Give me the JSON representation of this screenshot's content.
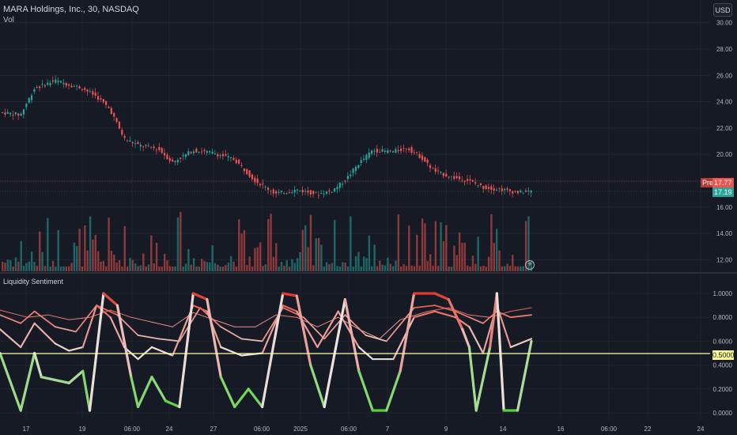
{
  "header": {
    "symbol_line": "MARA Holdings, Inc., 30, NASDAQ",
    "volume_label": "Vol",
    "currency": "USD"
  },
  "price_axis": {
    "ticks": [
      "30.00",
      "28.00",
      "26.00",
      "24.00",
      "22.00",
      "20.00",
      "18.00",
      "16.00",
      "14.00",
      "12.00"
    ]
  },
  "badges": {
    "pre_label": "Pre",
    "pre_price": "17.77",
    "last_price": "17.19"
  },
  "indicator": {
    "title": "Liquidity Sentiment",
    "ticks": [
      "1.0000",
      "0.8000",
      "0.6000",
      "0.4000",
      "0.2000",
      "0.0000"
    ],
    "level_value": "0.5000",
    "level_color": "#ffff99"
  },
  "time_axis": {
    "labels": [
      "17",
      "19",
      "06:00",
      "24",
      "27",
      "06:00",
      "2025",
      "06:00",
      "7",
      "9",
      "14",
      "16",
      "06:00",
      "22",
      "24"
    ]
  },
  "colors": {
    "background": "#161a25",
    "up": "#26a69a",
    "down": "#ef5350",
    "sentiment_high": "#e03a2a",
    "sentiment_low": "#4bd130"
  },
  "chart_data": {
    "type": "candlestick",
    "symbol": "MARA Holdings, Inc., 30, NASDAQ",
    "ylim": [
      11,
      31
    ],
    "price_path": [
      [
        0,
        23.2
      ],
      [
        0.03,
        23.0
      ],
      [
        0.05,
        25.0
      ],
      [
        0.08,
        25.6
      ],
      [
        0.1,
        25.3
      ],
      [
        0.12,
        25.0
      ],
      [
        0.14,
        24.4
      ],
      [
        0.16,
        23.4
      ],
      [
        0.18,
        21.2
      ],
      [
        0.2,
        20.7
      ],
      [
        0.23,
        20.4
      ],
      [
        0.25,
        19.4
      ],
      [
        0.28,
        20.3
      ],
      [
        0.31,
        20.1
      ],
      [
        0.34,
        19.6
      ],
      [
        0.37,
        18.0
      ],
      [
        0.4,
        17.0
      ],
      [
        0.43,
        17.3
      ],
      [
        0.46,
        17.0
      ],
      [
        0.48,
        17.2
      ],
      [
        0.5,
        18.0
      ],
      [
        0.52,
        19.3
      ],
      [
        0.54,
        20.3
      ],
      [
        0.57,
        20.2
      ],
      [
        0.59,
        20.5
      ],
      [
        0.61,
        19.8
      ],
      [
        0.63,
        18.7
      ],
      [
        0.66,
        18.2
      ],
      [
        0.68,
        18.0
      ],
      [
        0.7,
        17.5
      ],
      [
        0.73,
        17.3
      ],
      [
        0.75,
        17.1
      ],
      [
        0.77,
        17.19
      ]
    ],
    "sentiment_ylim": [
      0,
      1
    ],
    "sentiment_lines": [
      {
        "path": [
          [
            0,
            0.5
          ],
          [
            0.03,
            0.02
          ],
          [
            0.05,
            0.5
          ],
          [
            0.06,
            0.3
          ],
          [
            0.1,
            0.25
          ],
          [
            0.12,
            0.35
          ],
          [
            0.13,
            0.02
          ],
          [
            0.15,
            1.0
          ],
          [
            0.17,
            0.9
          ],
          [
            0.19,
            0.3
          ],
          [
            0.2,
            0.05
          ],
          [
            0.22,
            0.3
          ],
          [
            0.24,
            0.1
          ],
          [
            0.26,
            0.05
          ],
          [
            0.28,
            1.0
          ],
          [
            0.3,
            0.95
          ],
          [
            0.32,
            0.3
          ],
          [
            0.34,
            0.05
          ],
          [
            0.36,
            0.2
          ],
          [
            0.38,
            0.05
          ],
          [
            0.41,
            1.0
          ],
          [
            0.43,
            0.98
          ],
          [
            0.45,
            0.4
          ],
          [
            0.47,
            0.05
          ],
          [
            0.5,
            0.95
          ],
          [
            0.52,
            0.35
          ],
          [
            0.54,
            0.02
          ],
          [
            0.56,
            0.02
          ],
          [
            0.58,
            0.35
          ],
          [
            0.6,
            1.0
          ],
          [
            0.63,
            1.0
          ],
          [
            0.65,
            0.95
          ],
          [
            0.67,
            0.7
          ],
          [
            0.68,
            0.55
          ],
          [
            0.69,
            0.02
          ],
          [
            0.71,
            0.55
          ],
          [
            0.72,
            1.0
          ],
          [
            0.73,
            0.02
          ],
          [
            0.75,
            0.02
          ],
          [
            0.77,
            0.6
          ]
        ],
        "width": 3.2
      },
      {
        "path": [
          [
            0,
            0.7
          ],
          [
            0.03,
            0.55
          ],
          [
            0.05,
            0.75
          ],
          [
            0.08,
            0.58
          ],
          [
            0.1,
            0.52
          ],
          [
            0.12,
            0.55
          ],
          [
            0.14,
            0.9
          ],
          [
            0.16,
            0.8
          ],
          [
            0.18,
            0.55
          ],
          [
            0.2,
            0.45
          ],
          [
            0.22,
            0.55
          ],
          [
            0.25,
            0.48
          ],
          [
            0.28,
            0.9
          ],
          [
            0.3,
            0.85
          ],
          [
            0.32,
            0.55
          ],
          [
            0.35,
            0.48
          ],
          [
            0.38,
            0.5
          ],
          [
            0.41,
            0.9
          ],
          [
            0.43,
            0.85
          ],
          [
            0.46,
            0.55
          ],
          [
            0.49,
            0.85
          ],
          [
            0.52,
            0.55
          ],
          [
            0.54,
            0.45
          ],
          [
            0.57,
            0.45
          ],
          [
            0.6,
            0.8
          ],
          [
            0.63,
            0.85
          ],
          [
            0.66,
            0.8
          ],
          [
            0.68,
            0.72
          ],
          [
            0.7,
            0.5
          ],
          [
            0.72,
            0.9
          ],
          [
            0.74,
            0.55
          ],
          [
            0.77,
            0.62
          ]
        ],
        "width": 2.2
      },
      {
        "path": [
          [
            0,
            0.82
          ],
          [
            0.03,
            0.75
          ],
          [
            0.05,
            0.85
          ],
          [
            0.08,
            0.72
          ],
          [
            0.11,
            0.68
          ],
          [
            0.14,
            0.9
          ],
          [
            0.17,
            0.82
          ],
          [
            0.2,
            0.65
          ],
          [
            0.23,
            0.62
          ],
          [
            0.26,
            0.6
          ],
          [
            0.29,
            0.88
          ],
          [
            0.32,
            0.72
          ],
          [
            0.35,
            0.62
          ],
          [
            0.38,
            0.6
          ],
          [
            0.41,
            0.88
          ],
          [
            0.44,
            0.8
          ],
          [
            0.47,
            0.62
          ],
          [
            0.5,
            0.82
          ],
          [
            0.53,
            0.65
          ],
          [
            0.56,
            0.6
          ],
          [
            0.6,
            0.88
          ],
          [
            0.63,
            0.9
          ],
          [
            0.66,
            0.85
          ],
          [
            0.68,
            0.8
          ],
          [
            0.7,
            0.75
          ],
          [
            0.72,
            0.85
          ],
          [
            0.74,
            0.8
          ],
          [
            0.77,
            0.82
          ]
        ],
        "width": 1.8
      },
      {
        "path": [
          [
            0,
            0.86
          ],
          [
            0.04,
            0.8
          ],
          [
            0.07,
            0.82
          ],
          [
            0.1,
            0.78
          ],
          [
            0.13,
            0.8
          ],
          [
            0.16,
            0.86
          ],
          [
            0.19,
            0.8
          ],
          [
            0.22,
            0.76
          ],
          [
            0.25,
            0.72
          ],
          [
            0.28,
            0.84
          ],
          [
            0.31,
            0.78
          ],
          [
            0.34,
            0.72
          ],
          [
            0.37,
            0.72
          ],
          [
            0.4,
            0.82
          ],
          [
            0.43,
            0.8
          ],
          [
            0.46,
            0.72
          ],
          [
            0.49,
            0.8
          ],
          [
            0.52,
            0.7
          ],
          [
            0.55,
            0.62
          ],
          [
            0.58,
            0.78
          ],
          [
            0.62,
            0.85
          ],
          [
            0.65,
            0.88
          ],
          [
            0.68,
            0.82
          ],
          [
            0.71,
            0.8
          ],
          [
            0.74,
            0.85
          ],
          [
            0.77,
            0.88
          ]
        ],
        "width": 1.0
      }
    ]
  }
}
